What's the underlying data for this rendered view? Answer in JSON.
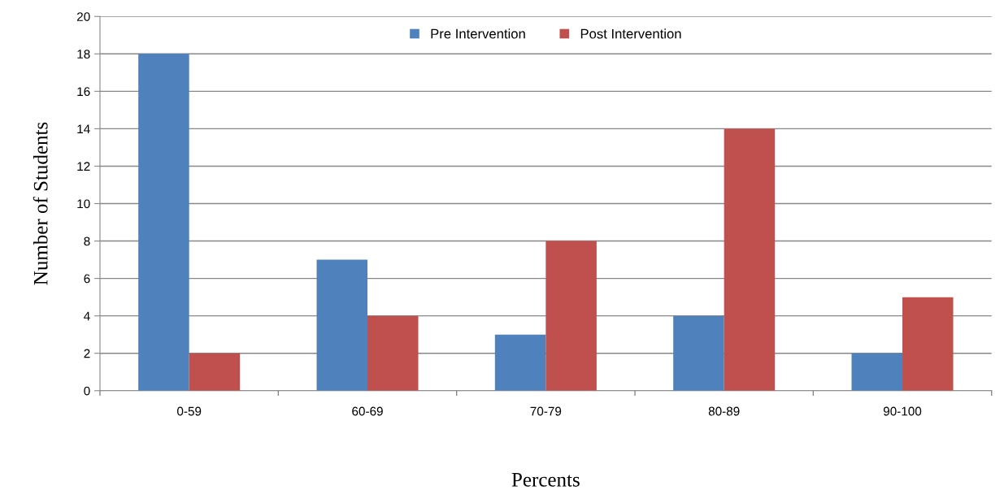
{
  "chart_data": {
    "type": "bar",
    "xlabel": "Percents",
    "ylabel": "Number of Students",
    "categories": [
      "0-59",
      "60-69",
      "70-79",
      "80-89",
      "90-100"
    ],
    "series": [
      {
        "name": "Pre Intervention",
        "color": "#4f81bd",
        "values": [
          18,
          7,
          3,
          4,
          2
        ]
      },
      {
        "name": "Post Intervention",
        "color": "#c0504d",
        "values": [
          2,
          4,
          8,
          14,
          5
        ]
      }
    ],
    "ylim": [
      0,
      20
    ],
    "yticks": [
      0,
      2,
      4,
      6,
      8,
      10,
      12,
      14,
      16,
      18,
      20
    ],
    "grid": "y",
    "legend": "top"
  }
}
